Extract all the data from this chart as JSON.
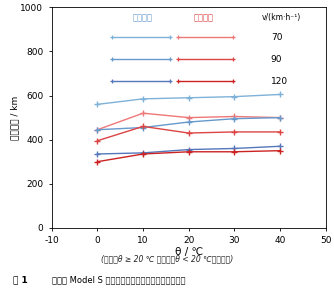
{
  "xlabel": "θ / ℃",
  "ylabel": "绩航里程 / km",
  "subtitle": "(假设：θ ≥ 20 ℃ 为冷气，θ < 20 ℃为暖气。)",
  "legend_title": "v/(km·h⁻¹)",
  "legend_col1": "关闭空调",
  "legend_col2": "开启空调",
  "fig_caption_1": "图 1",
  "fig_caption_2": "特斯拉 Model S 在不同温度及空调状态下的绩航里程",
  "x": [
    0,
    10,
    20,
    30,
    40
  ],
  "xlim": [
    -10,
    50
  ],
  "ylim": [
    0,
    1000
  ],
  "yticks": [
    0,
    200,
    400,
    600,
    800,
    1000
  ],
  "xticks": [
    -10,
    0,
    10,
    20,
    30,
    40,
    50
  ],
  "blue_70": "#7FB2D8",
  "blue_90": "#6699CC",
  "blue_120": "#5577BB",
  "red_70": "#EE7777",
  "red_90": "#DD4444",
  "red_120": "#CC2222",
  "series": {
    "blue_70": [
      560,
      585,
      590,
      595,
      605
    ],
    "blue_90": [
      445,
      455,
      480,
      495,
      500
    ],
    "blue_120": [
      335,
      340,
      355,
      360,
      370
    ],
    "red_70": [
      445,
      520,
      500,
      505,
      500
    ],
    "red_90": [
      395,
      460,
      430,
      435,
      435
    ],
    "red_120": [
      300,
      335,
      345,
      345,
      350
    ]
  },
  "speeds": [
    "70",
    "90",
    "120"
  ],
  "bg_color": "#ffffff"
}
